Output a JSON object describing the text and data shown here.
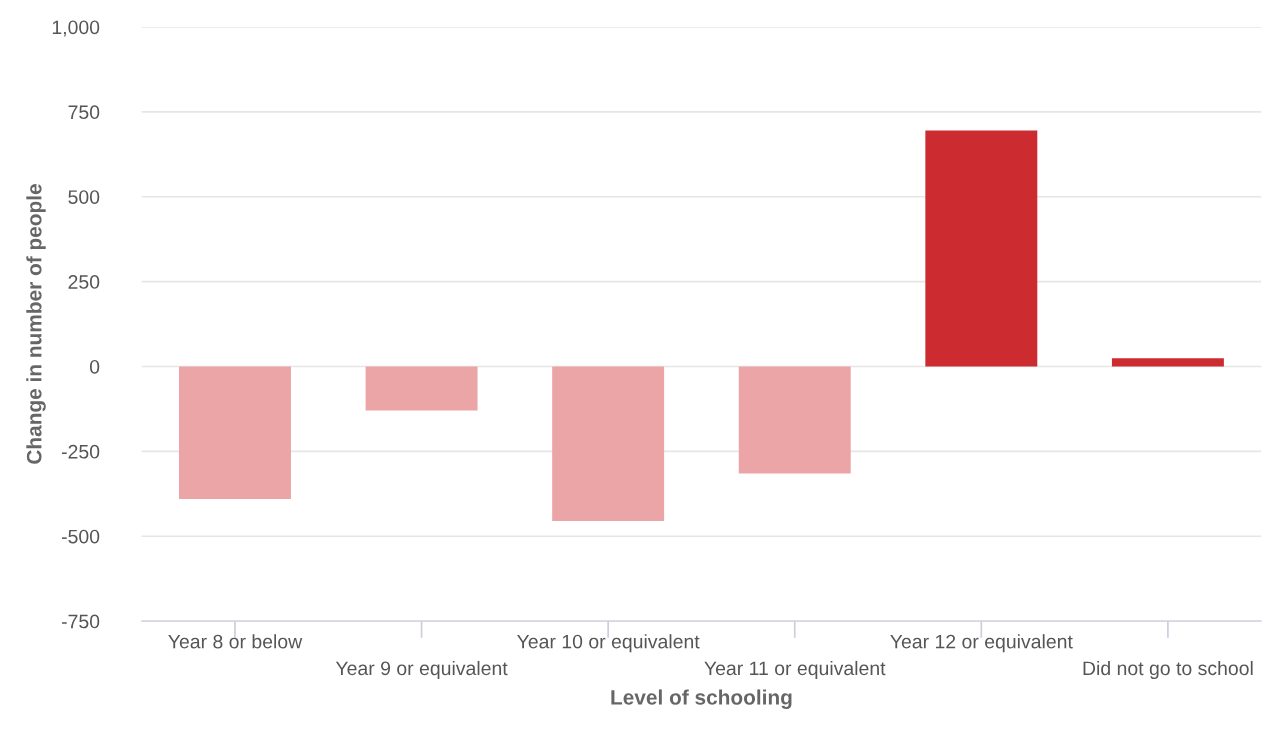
{
  "chart_data": {
    "type": "bar",
    "xlabel": "Level of schooling",
    "ylabel": "Change in number of people",
    "categories": [
      "Year 8 or below",
      "Year 9 or equivalent",
      "Year 10 or equivalent",
      "Year 11 or equivalent",
      "Year 12 or equivalent",
      "Did not go to school"
    ],
    "values": [
      -390,
      -130,
      -455,
      -315,
      695,
      24
    ],
    "colors": [
      "#eba5a6",
      "#eba5a6",
      "#eba5a6",
      "#eba5a6",
      "#cc2b30",
      "#cc2b30"
    ],
    "ylim": [
      -750,
      1000
    ],
    "yticks": [
      {
        "value": -750,
        "label": "-750"
      },
      {
        "value": -500,
        "label": "-500"
      },
      {
        "value": -250,
        "label": "-250"
      },
      0,
      250,
      500,
      750,
      {
        "value": 1000,
        "label": "1,000"
      }
    ],
    "grid": "y",
    "legend": false
  }
}
